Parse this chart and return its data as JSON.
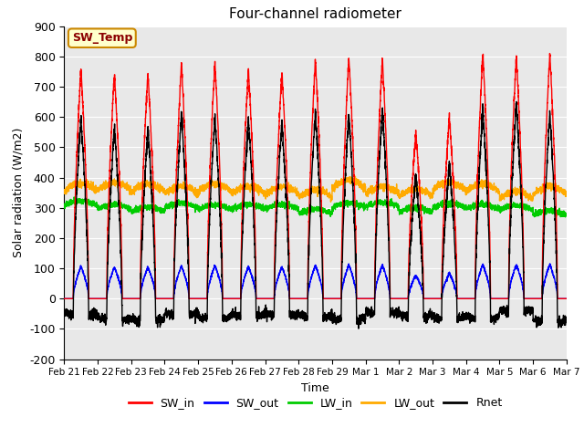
{
  "title": "Four-channel radiometer",
  "xlabel": "Time",
  "ylabel": "Solar radiation (W/m2)",
  "ylim": [
    -200,
    900
  ],
  "yticks": [
    -200,
    -100,
    0,
    100,
    200,
    300,
    400,
    500,
    600,
    700,
    800,
    900
  ],
  "bg_color": "#e8e8e8",
  "grid_color": "#ffffff",
  "annotation_text": "SW_Temp",
  "annotation_bg": "#ffffcc",
  "annotation_border": "#cc8800",
  "legend_entries": [
    "SW_in",
    "SW_out",
    "LW_in",
    "LW_out",
    "Rnet"
  ],
  "line_colors": [
    "#ff0000",
    "#0000ff",
    "#00cc00",
    "#ffaa00",
    "#000000"
  ],
  "n_days": 15
}
